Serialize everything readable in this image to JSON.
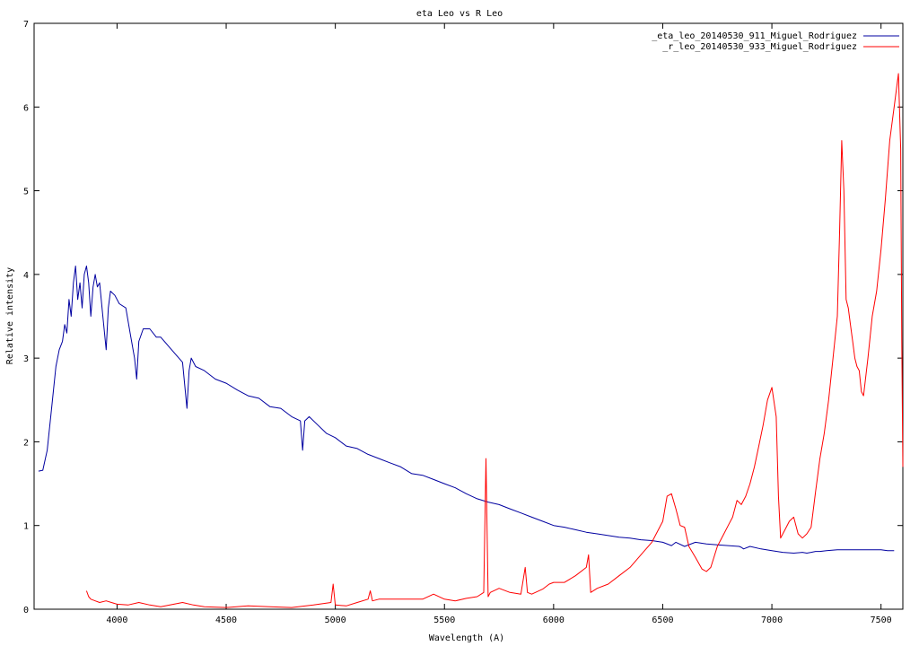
{
  "chart_data": {
    "type": "line",
    "title": "eta Leo vs R Leo",
    "xlabel": "Wavelength (A)",
    "ylabel": "Relative intensity",
    "xlim": [
      3620,
      7600
    ],
    "ylim": [
      0,
      7
    ],
    "xticks": [
      4000,
      4500,
      5000,
      5500,
      6000,
      6500,
      7000,
      7500
    ],
    "yticks": [
      0,
      1,
      2,
      3,
      4,
      5,
      6,
      7
    ],
    "grid": false,
    "legend": "top-right",
    "series": [
      {
        "name": "_eta_leo_20140530_911_Miguel_Rodriguez",
        "color": "#0000a0",
        "x": [
          3640,
          3660,
          3680,
          3700,
          3720,
          3735,
          3750,
          3760,
          3770,
          3780,
          3790,
          3800,
          3810,
          3820,
          3830,
          3840,
          3850,
          3860,
          3870,
          3880,
          3890,
          3900,
          3910,
          3920,
          3935,
          3950,
          3960,
          3970,
          3990,
          4010,
          4040,
          4060,
          4080,
          4090,
          4100,
          4120,
          4150,
          4180,
          4200,
          4250,
          4300,
          4320,
          4330,
          4340,
          4360,
          4400,
          4450,
          4500,
          4550,
          4600,
          4650,
          4700,
          4750,
          4800,
          4840,
          4850,
          4860,
          4880,
          4920,
          4960,
          5000,
          5050,
          5100,
          5150,
          5200,
          5250,
          5300,
          5350,
          5400,
          5450,
          5500,
          5550,
          5600,
          5650,
          5700,
          5750,
          5800,
          5850,
          5900,
          5950,
          6000,
          6050,
          6100,
          6150,
          6200,
          6250,
          6300,
          6350,
          6400,
          6450,
          6500,
          6540,
          6560,
          6600,
          6650,
          6700,
          6750,
          6800,
          6850,
          6860,
          6870,
          6900,
          6950,
          7000,
          7050,
          7100,
          7140,
          7160,
          7180,
          7200,
          7220,
          7250,
          7300,
          7350,
          7400,
          7450,
          7500,
          7530,
          7560
        ],
        "values": [
          1.65,
          1.66,
          1.9,
          2.4,
          2.9,
          3.1,
          3.2,
          3.4,
          3.3,
          3.7,
          3.5,
          3.9,
          4.1,
          3.7,
          3.9,
          3.6,
          4.0,
          4.1,
          3.9,
          3.5,
          3.85,
          4.0,
          3.85,
          3.9,
          3.5,
          3.1,
          3.6,
          3.8,
          3.75,
          3.65,
          3.6,
          3.3,
          3.0,
          2.75,
          3.2,
          3.35,
          3.35,
          3.25,
          3.25,
          3.1,
          2.95,
          2.4,
          2.85,
          3.0,
          2.9,
          2.85,
          2.75,
          2.7,
          2.62,
          2.55,
          2.52,
          2.42,
          2.4,
          2.3,
          2.25,
          1.9,
          2.25,
          2.3,
          2.2,
          2.1,
          2.05,
          1.95,
          1.92,
          1.85,
          1.8,
          1.75,
          1.7,
          1.62,
          1.6,
          1.55,
          1.5,
          1.45,
          1.38,
          1.32,
          1.28,
          1.25,
          1.2,
          1.15,
          1.1,
          1.05,
          1.0,
          0.98,
          0.95,
          0.92,
          0.9,
          0.88,
          0.86,
          0.85,
          0.83,
          0.82,
          0.8,
          0.76,
          0.8,
          0.75,
          0.8,
          0.78,
          0.77,
          0.76,
          0.75,
          0.74,
          0.72,
          0.75,
          0.72,
          0.7,
          0.68,
          0.67,
          0.68,
          0.67,
          0.68,
          0.69,
          0.69,
          0.7,
          0.71,
          0.71,
          0.71,
          0.71,
          0.71,
          0.7,
          0.7
        ]
      },
      {
        "name": "_r_leo_20140530_933_Miguel_Rodriguez",
        "color": "#ff0000",
        "x": [
          3860,
          3870,
          3880,
          3900,
          3920,
          3950,
          4000,
          4050,
          4100,
          4150,
          4200,
          4300,
          4350,
          4400,
          4500,
          4600,
          4700,
          4800,
          4900,
          4980,
          4990,
          5000,
          5050,
          5100,
          5150,
          5160,
          5170,
          5200,
          5300,
          5400,
          5450,
          5500,
          5550,
          5600,
          5650,
          5680,
          5690,
          5700,
          5710,
          5750,
          5800,
          5850,
          5870,
          5880,
          5900,
          5950,
          5980,
          6000,
          6050,
          6100,
          6150,
          6160,
          6170,
          6200,
          6250,
          6300,
          6350,
          6400,
          6450,
          6500,
          6520,
          6540,
          6560,
          6580,
          6600,
          6620,
          6650,
          6680,
          6700,
          6720,
          6750,
          6780,
          6800,
          6820,
          6840,
          6860,
          6880,
          6900,
          6920,
          6940,
          6960,
          6980,
          7000,
          7020,
          7030,
          7040,
          7060,
          7080,
          7100,
          7120,
          7140,
          7160,
          7180,
          7200,
          7220,
          7240,
          7260,
          7280,
          7300,
          7310,
          7320,
          7330,
          7340,
          7350,
          7360,
          7370,
          7380,
          7390,
          7400,
          7410,
          7420,
          7440,
          7460,
          7480,
          7500,
          7520,
          7540,
          7560,
          7570,
          7580,
          7590,
          7595,
          7600
        ],
        "values": [
          0.22,
          0.15,
          0.12,
          0.1,
          0.08,
          0.1,
          0.06,
          0.05,
          0.08,
          0.05,
          0.03,
          0.08,
          0.05,
          0.03,
          0.02,
          0.04,
          0.03,
          0.02,
          0.05,
          0.08,
          0.3,
          0.05,
          0.04,
          0.08,
          0.12,
          0.22,
          0.1,
          0.12,
          0.12,
          0.12,
          0.18,
          0.12,
          0.1,
          0.13,
          0.15,
          0.2,
          1.8,
          0.15,
          0.2,
          0.25,
          0.2,
          0.18,
          0.5,
          0.2,
          0.18,
          0.24,
          0.3,
          0.32,
          0.32,
          0.4,
          0.5,
          0.65,
          0.2,
          0.25,
          0.3,
          0.4,
          0.5,
          0.65,
          0.8,
          1.05,
          1.35,
          1.38,
          1.2,
          1.0,
          0.98,
          0.75,
          0.62,
          0.48,
          0.45,
          0.5,
          0.75,
          0.9,
          1.0,
          1.1,
          1.3,
          1.25,
          1.35,
          1.5,
          1.7,
          1.95,
          2.2,
          2.5,
          2.65,
          2.3,
          1.35,
          0.85,
          0.95,
          1.05,
          1.1,
          0.9,
          0.85,
          0.9,
          0.98,
          1.4,
          1.8,
          2.1,
          2.5,
          3.0,
          3.5,
          4.5,
          5.6,
          5.0,
          3.7,
          3.6,
          3.4,
          3.2,
          3.0,
          2.9,
          2.85,
          2.6,
          2.55,
          3.0,
          3.5,
          3.8,
          4.3,
          4.9,
          5.6,
          6.0,
          6.2,
          6.4,
          5.5,
          3.2,
          1.7
        ]
      }
    ]
  }
}
